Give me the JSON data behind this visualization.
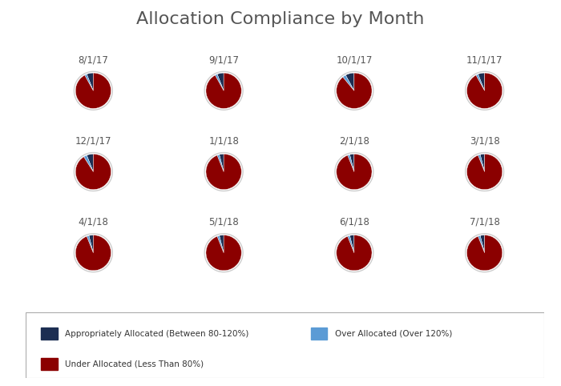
{
  "title": "Allocation Compliance by Month",
  "title_fontsize": 16,
  "title_color": "#555555",
  "background_color": "#ffffff",
  "months": [
    "8/1/17",
    "9/1/17",
    "10/1/17",
    "11/1/17",
    "12/1/17",
    "1/1/18",
    "2/1/18",
    "3/1/18",
    "4/1/18",
    "5/1/18",
    "6/1/18",
    "7/1/18"
  ],
  "pie_data": [
    [
      6,
      2,
      92
    ],
    [
      6,
      2,
      92
    ],
    [
      8,
      3,
      89
    ],
    [
      6,
      2,
      92
    ],
    [
      6,
      3,
      91
    ],
    [
      4,
      2,
      94
    ],
    [
      4,
      2,
      94
    ],
    [
      4,
      2,
      94
    ],
    [
      4,
      2,
      94
    ],
    [
      4,
      2,
      94
    ],
    [
      4,
      2,
      94
    ],
    [
      4,
      2,
      94
    ]
  ],
  "colors": [
    "#1c2e52",
    "#5b9bd5",
    "#8b0000"
  ],
  "legend_labels": [
    "Appropriately Allocated (Between 80-120%)",
    "Over Allocated (Over 120%)",
    "Under Allocated (Less Than 80%)"
  ],
  "legend_colors": [
    "#1c2e52",
    "#5b9bd5",
    "#8b0000"
  ],
  "grid_rows": 3,
  "grid_cols": 4,
  "label_fontsize": 8.5,
  "label_color": "#555555"
}
